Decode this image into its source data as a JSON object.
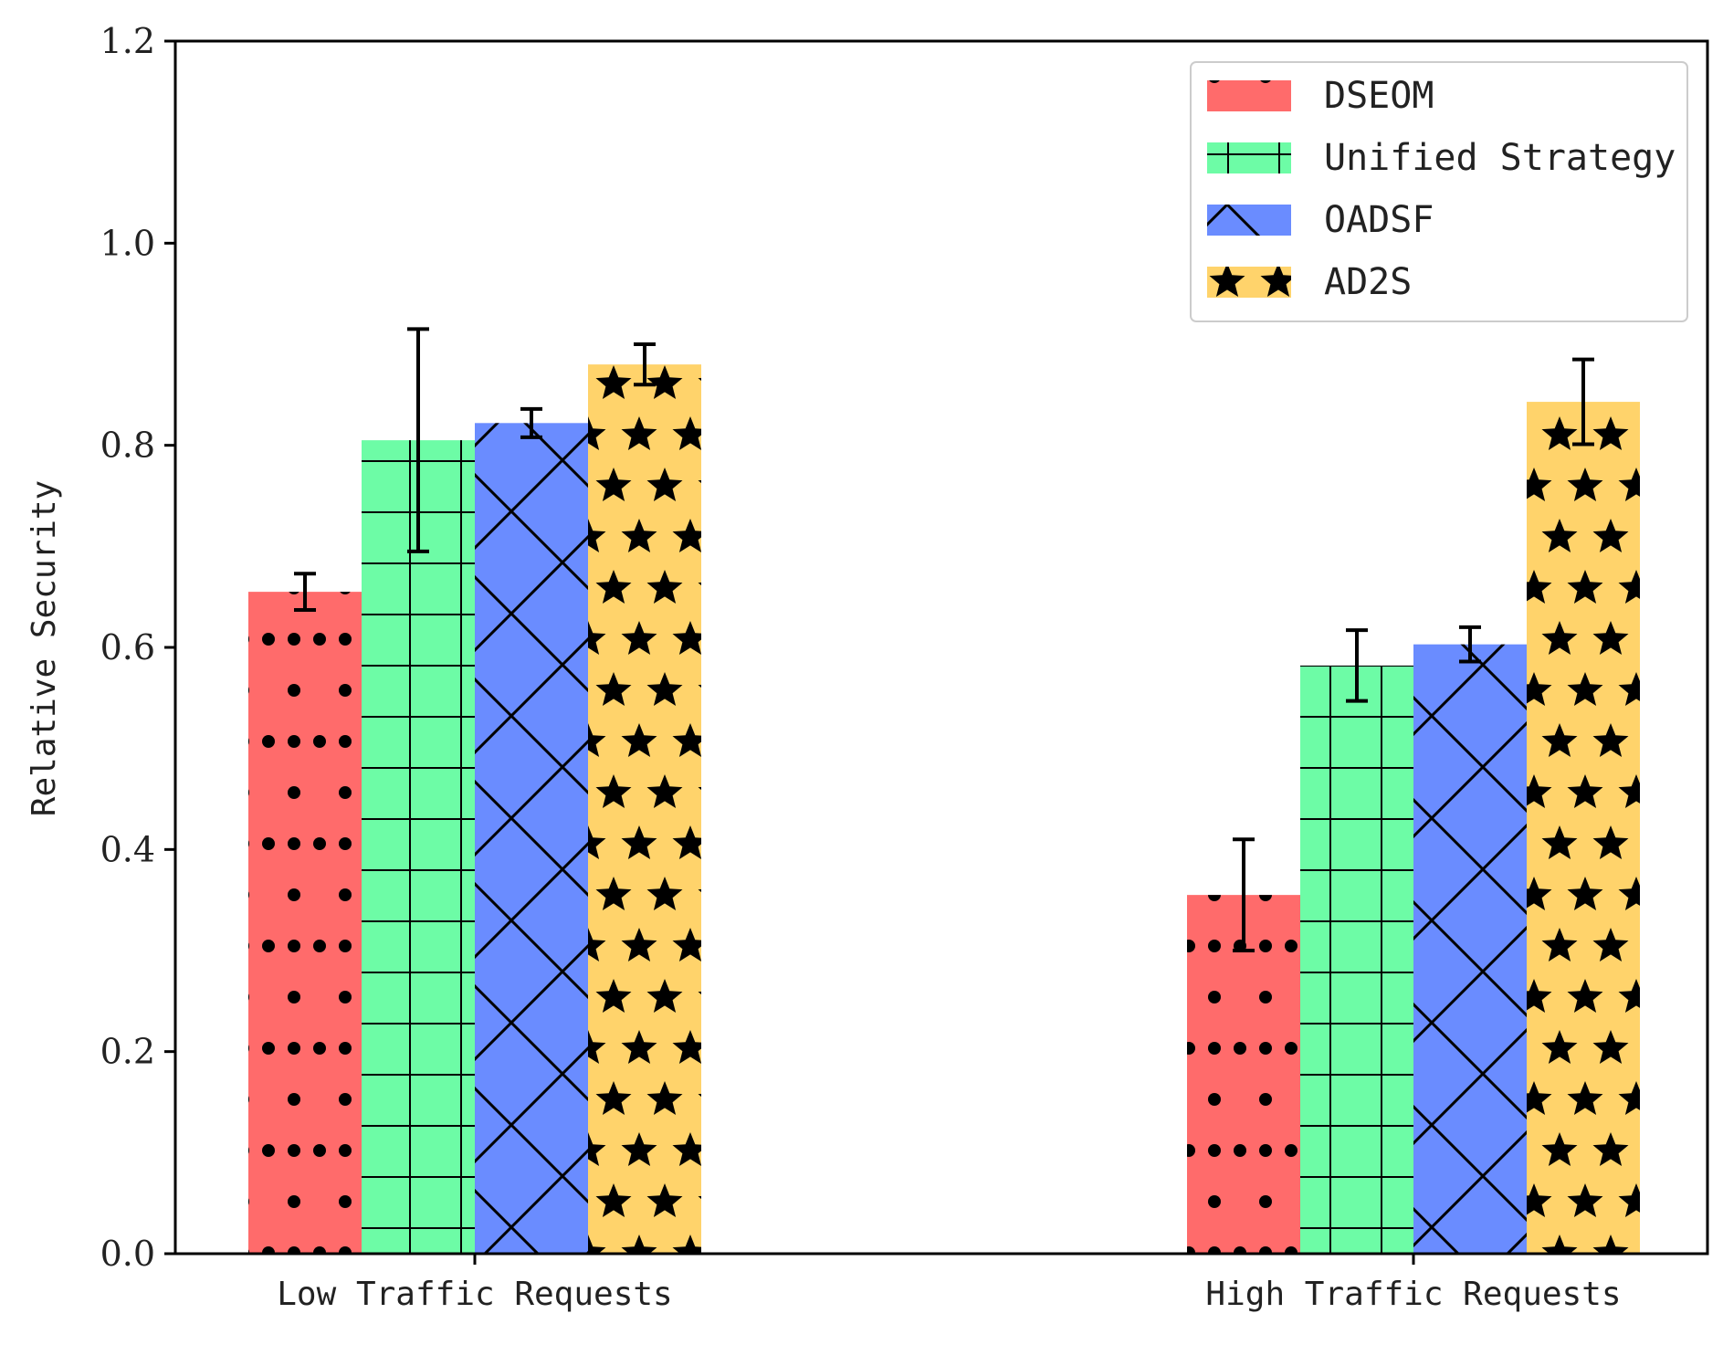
{
  "chart_data": {
    "type": "bar",
    "title": "",
    "xlabel": "",
    "ylabel": "Relative Security",
    "ylim": [
      0,
      1.2
    ],
    "yticks": [
      "0.0",
      "0.2",
      "0.4",
      "0.6",
      "0.8",
      "1.0",
      "1.2"
    ],
    "grid": false,
    "legend_position": "top-right",
    "categories": [
      "Low Traffic Requests",
      "High Traffic Requests"
    ],
    "series": [
      {
        "name": "DSEOM",
        "color": "#ff6b6b",
        "hatch": "dots",
        "values": [
          0.655,
          0.355
        ],
        "errors": [
          0.018,
          0.055
        ]
      },
      {
        "name": "Unified Strategy",
        "color": "#6dfca6",
        "hatch": "grid",
        "values": [
          0.805,
          0.582
        ],
        "errors": [
          0.11,
          0.035
        ]
      },
      {
        "name": "OADSF",
        "color": "#6a8cff",
        "hatch": "cross",
        "values": [
          0.822,
          0.603
        ],
        "errors": [
          0.014,
          0.017
        ]
      },
      {
        "name": "AD2S",
        "color": "#ffd36b",
        "hatch": "stars",
        "values": [
          0.88,
          0.843
        ],
        "errors": [
          0.02,
          0.042
        ]
      }
    ]
  }
}
